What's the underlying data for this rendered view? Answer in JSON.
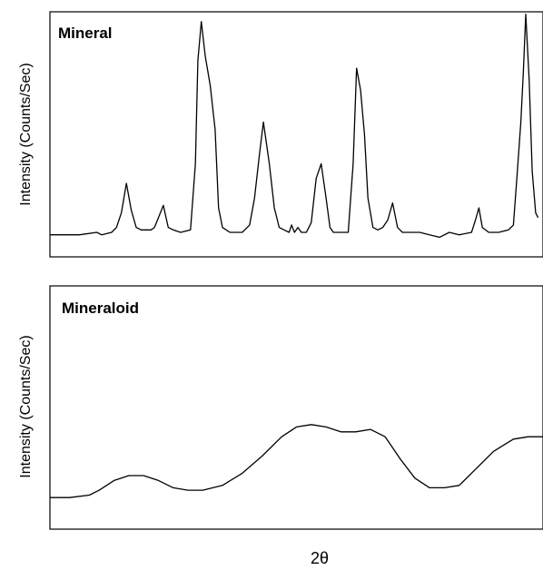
{
  "colors": {
    "line": "#000000",
    "background": "#ffffff"
  },
  "xlabel": "2θ",
  "chart_data": [
    {
      "type": "line",
      "title": "Mineral",
      "ylabel": "Intensity (Counts/Sec)",
      "xlabel": "2θ",
      "xlim": [
        0,
        100
      ],
      "ylim": [
        0,
        100
      ],
      "x_ticks": [],
      "y_ticks": [],
      "series": [
        {
          "points": [
            [
              0,
              9
            ],
            [
              6,
              9
            ],
            [
              9.5,
              10
            ],
            [
              10.5,
              9
            ],
            [
              12.5,
              10
            ],
            [
              13.5,
              12
            ],
            [
              14.5,
              18
            ],
            [
              15.5,
              30
            ],
            [
              16.5,
              19
            ],
            [
              17.5,
              12
            ],
            [
              18.5,
              11
            ],
            [
              20.5,
              11
            ],
            [
              21.2,
              12
            ],
            [
              22,
              16
            ],
            [
              23,
              21
            ],
            [
              24,
              12
            ],
            [
              25,
              11
            ],
            [
              26.5,
              10
            ],
            [
              28.5,
              11
            ],
            [
              29.5,
              38
            ],
            [
              30,
              80
            ],
            [
              30.7,
              96
            ],
            [
              31.5,
              82
            ],
            [
              32.5,
              70
            ],
            [
              33.5,
              52
            ],
            [
              34.2,
              20
            ],
            [
              35,
              12
            ],
            [
              36.5,
              10
            ],
            [
              39,
              10
            ],
            [
              40.5,
              13
            ],
            [
              41.5,
              24
            ],
            [
              42.5,
              42
            ],
            [
              43.3,
              55
            ],
            [
              44.5,
              38
            ],
            [
              45.5,
              20
            ],
            [
              46.5,
              12
            ],
            [
              47.5,
              11
            ],
            [
              48.5,
              10
            ],
            [
              49,
              13
            ],
            [
              49.6,
              10
            ],
            [
              50.3,
              12
            ],
            [
              51,
              10
            ],
            [
              52,
              10
            ],
            [
              53,
              14
            ],
            [
              54,
              32
            ],
            [
              55,
              38
            ],
            [
              56,
              24
            ],
            [
              56.8,
              12
            ],
            [
              57.5,
              10
            ],
            [
              60.5,
              10
            ],
            [
              61.5,
              38
            ],
            [
              62.2,
              77
            ],
            [
              63,
              68
            ],
            [
              63.8,
              50
            ],
            [
              64.5,
              24
            ],
            [
              65.5,
              12
            ],
            [
              66.5,
              11
            ],
            [
              67.5,
              12
            ],
            [
              68.5,
              15
            ],
            [
              69.5,
              22
            ],
            [
              70.5,
              12
            ],
            [
              71.5,
              10
            ],
            [
              75,
              10
            ],
            [
              77,
              9
            ],
            [
              79,
              8
            ],
            [
              81,
              10
            ],
            [
              83,
              9
            ],
            [
              85.5,
              10
            ],
            [
              86.3,
              15
            ],
            [
              87,
              20
            ],
            [
              87.7,
              12
            ],
            [
              89,
              10
            ],
            [
              91,
              10
            ],
            [
              93,
              11
            ],
            [
              94,
              13
            ],
            [
              94.7,
              32
            ],
            [
              95.5,
              55
            ],
            [
              96,
              75
            ],
            [
              96.5,
              99
            ],
            [
              97.2,
              72
            ],
            [
              97.8,
              35
            ],
            [
              98.5,
              18
            ],
            [
              99,
              16
            ]
          ]
        }
      ]
    },
    {
      "type": "line",
      "title": "Mineraloid",
      "ylabel": "Intensity (Counts/Sec)",
      "xlabel": "2θ",
      "xlim": [
        0,
        100
      ],
      "ylim": [
        0,
        100
      ],
      "x_ticks": [],
      "y_ticks": [],
      "series": [
        {
          "points": [
            [
              0,
              13
            ],
            [
              4,
              13
            ],
            [
              8,
              14
            ],
            [
              10,
              16
            ],
            [
              13,
              20
            ],
            [
              16,
              22
            ],
            [
              19,
              22
            ],
            [
              22,
              20
            ],
            [
              25,
              17
            ],
            [
              28,
              16
            ],
            [
              31,
              16
            ],
            [
              35,
              18
            ],
            [
              39,
              23
            ],
            [
              43,
              30
            ],
            [
              47,
              38
            ],
            [
              50,
              42
            ],
            [
              53,
              43
            ],
            [
              56,
              42
            ],
            [
              59,
              40
            ],
            [
              62,
              40
            ],
            [
              65,
              41
            ],
            [
              68,
              38
            ],
            [
              71,
              29
            ],
            [
              74,
              21
            ],
            [
              77,
              17
            ],
            [
              80,
              17
            ],
            [
              83,
              18
            ],
            [
              86,
              24
            ],
            [
              90,
              32
            ],
            [
              94,
              37
            ],
            [
              97,
              38
            ],
            [
              100,
              38
            ]
          ]
        }
      ]
    }
  ]
}
